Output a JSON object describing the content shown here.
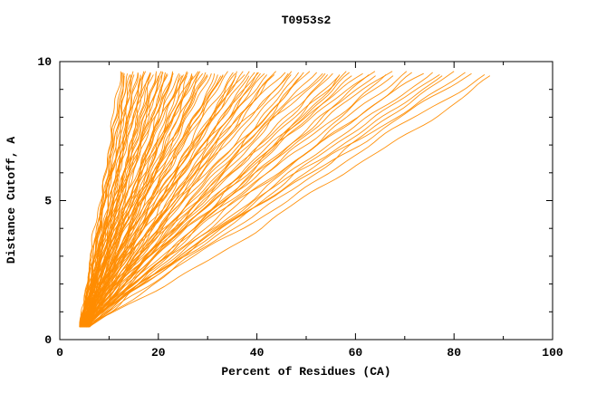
{
  "chart_data": {
    "type": "line",
    "title": "T0953s2",
    "xlabel": "Percent of Residues (CA)",
    "ylabel": "Distance Cutoff, A",
    "xlim": [
      0,
      100
    ],
    "ylim": [
      0,
      10
    ],
    "x_major_ticks": [
      0,
      20,
      40,
      60,
      80,
      100
    ],
    "x_minor_ticks": [
      10,
      30,
      50,
      70,
      90
    ],
    "y_major_ticks": [
      0,
      5,
      10
    ],
    "y_minor_ticks": [
      1,
      2,
      3,
      4,
      6,
      7,
      8,
      9
    ],
    "grid": false,
    "legend": "none",
    "line_color": "#ff8c00",
    "frame_color": "#000000",
    "curve_model": "x(y) = x0 + (x1 - x0) * t^p, t = (y - y_start)/(y_end - y_start); each curve is percent-of-CA-residues vs distance cutoff for one predicted model",
    "curve_y_start": 0.45,
    "curve_y_end": 9.65,
    "curves": [
      [
        4.2,
        12.5,
        1.05
      ],
      [
        4.5,
        13,
        1.1
      ],
      [
        5,
        13.5,
        0.95
      ],
      [
        4.8,
        14,
        1.2
      ],
      [
        5.2,
        14.5,
        1.0
      ],
      [
        4.0,
        15,
        1.15
      ],
      [
        5.5,
        15.5,
        0.9
      ],
      [
        4.6,
        16,
        1.25
      ],
      [
        5.0,
        16.5,
        1.05
      ],
      [
        4.3,
        17,
        1.1
      ],
      [
        5.8,
        17.5,
        0.95
      ],
      [
        4.9,
        18,
        1.2
      ],
      [
        5.3,
        18.5,
        1.0
      ],
      [
        4.4,
        19,
        1.15
      ],
      [
        5.6,
        19.5,
        1.05
      ],
      [
        4.1,
        20,
        1.1
      ],
      [
        5.1,
        12.8,
        1.0
      ],
      [
        4.7,
        13.8,
        1.15
      ],
      [
        5.4,
        15.2,
        1.05
      ],
      [
        4.35,
        16.2,
        0.95
      ],
      [
        5.05,
        17.2,
        1.2
      ],
      [
        4.55,
        18.2,
        1.0
      ],
      [
        5.25,
        19.2,
        1.1
      ],
      [
        4.15,
        14.8,
        1.05
      ],
      [
        5.45,
        13.2,
        1.12
      ],
      [
        4.65,
        20.5,
        1.0
      ],
      [
        4.2,
        21,
        1.1
      ],
      [
        5.0,
        21.5,
        1.0
      ],
      [
        4.6,
        22,
        1.2
      ],
      [
        5.3,
        22.5,
        0.95
      ],
      [
        4.4,
        23,
        1.15
      ],
      [
        5.6,
        23.5,
        1.05
      ],
      [
        4.8,
        24,
        1.1
      ],
      [
        5.2,
        24.5,
        1.0
      ],
      [
        4.3,
        25,
        1.25
      ],
      [
        5.5,
        25.5,
        0.9
      ],
      [
        4.7,
        26,
        1.15
      ],
      [
        5.1,
        26.5,
        1.05
      ],
      [
        4.5,
        27,
        1.1
      ],
      [
        5.4,
        27.5,
        1.0
      ],
      [
        4.9,
        28,
        1.2
      ],
      [
        5.7,
        28.5,
        0.95
      ],
      [
        4.25,
        29,
        1.1
      ],
      [
        5.15,
        29.5,
        1.05
      ],
      [
        4.55,
        30,
        1.15
      ],
      [
        5.35,
        20.8,
        1.0
      ],
      [
        4.75,
        21.8,
        1.2
      ],
      [
        5.05,
        23.2,
        1.05
      ],
      [
        4.45,
        24.8,
        1.1
      ],
      [
        5.25,
        26.2,
        0.95
      ],
      [
        4.85,
        27.8,
        1.15
      ],
      [
        5.45,
        29.2,
        1.05
      ],
      [
        4.3,
        31,
        1.1
      ],
      [
        5.1,
        32,
        1.0
      ],
      [
        4.7,
        33,
        1.2
      ],
      [
        5.4,
        34,
        0.95
      ],
      [
        4.5,
        35,
        1.15
      ],
      [
        5.2,
        36,
        1.05
      ],
      [
        4.9,
        37,
        1.1
      ],
      [
        5.6,
        38,
        1.0
      ],
      [
        4.4,
        39,
        1.25
      ],
      [
        5.3,
        40,
        0.9
      ],
      [
        4.8,
        41,
        1.15
      ],
      [
        5.0,
        42,
        1.05
      ],
      [
        4.6,
        43,
        1.1
      ],
      [
        5.5,
        44,
        1.0
      ],
      [
        4.35,
        45,
        1.2
      ],
      [
        5.15,
        31.5,
        0.95
      ],
      [
        4.65,
        33.5,
        1.1
      ],
      [
        5.45,
        35.5,
        1.05
      ],
      [
        4.95,
        37.5,
        1.15
      ],
      [
        5.25,
        39.5,
        1.0
      ],
      [
        4.55,
        41.5,
        1.2
      ],
      [
        5.05,
        43.5,
        1.05
      ],
      [
        4.75,
        32.5,
        1.1
      ],
      [
        5.35,
        36.5,
        0.95
      ],
      [
        4.45,
        40.5,
        1.15
      ],
      [
        4.5,
        46,
        1.05
      ],
      [
        5.2,
        47.5,
        1.1
      ],
      [
        4.8,
        49,
        0.95
      ],
      [
        5.5,
        50.5,
        1.15
      ],
      [
        4.6,
        52,
        1.0
      ],
      [
        5.3,
        53.5,
        1.2
      ],
      [
        4.9,
        55,
        1.05
      ],
      [
        5.6,
        56.5,
        0.9
      ],
      [
        4.4,
        58,
        1.1
      ],
      [
        5.1,
        59.5,
        1.05
      ],
      [
        4.7,
        61,
        1.15
      ],
      [
        5.4,
        62.5,
        1.0
      ],
      [
        5.0,
        64,
        1.1
      ],
      [
        4.55,
        47,
        1.2
      ],
      [
        5.25,
        50,
        1.0
      ],
      [
        4.85,
        53,
        1.1
      ],
      [
        5.55,
        57,
        0.95
      ],
      [
        4.65,
        60,
        1.05
      ],
      [
        5.15,
        63,
        1.15
      ],
      [
        4.95,
        48.5,
        1.0
      ],
      [
        5.45,
        55.5,
        1.08
      ],
      [
        5.0,
        66,
        1.0
      ],
      [
        5.5,
        68,
        1.1
      ],
      [
        4.8,
        70,
        0.95
      ],
      [
        5.3,
        72,
        1.05
      ],
      [
        5.1,
        74,
        1.15
      ],
      [
        4.9,
        76,
        1.0
      ],
      [
        5.6,
        78,
        1.08
      ],
      [
        5.2,
        80,
        0.95
      ],
      [
        4.7,
        82,
        1.05
      ],
      [
        5.4,
        84,
        1.1
      ],
      [
        5.0,
        86,
        1.0
      ],
      [
        5.25,
        88,
        0.92
      ],
      [
        4.85,
        67,
        1.12
      ],
      [
        5.45,
        75,
        1.02
      ]
    ]
  }
}
